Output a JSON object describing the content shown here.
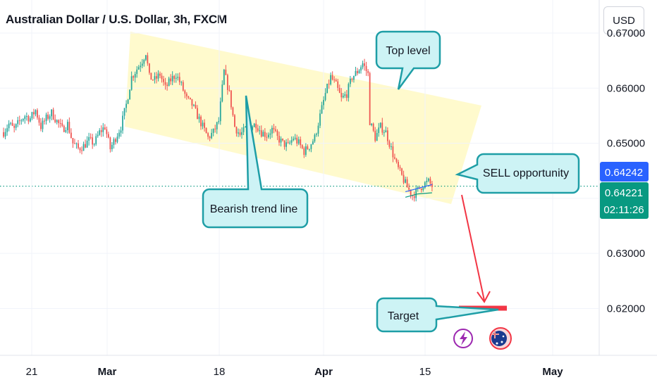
{
  "header": {
    "title": "Australian Dollar / U.S. Dollar, 3h, FXCM",
    "currency": "USD"
  },
  "colors": {
    "up": "#26a69a",
    "down": "#ef5350",
    "channel": "#fff9c4",
    "callout_fill": "#cdf3f5",
    "callout_stroke": "#1e9ea6",
    "arrow": "#f23645",
    "blue_tag": "#2962ff",
    "green_tag": "#089981"
  },
  "annotations": {
    "top_level": "Top level",
    "bearish_trend_line": "Bearish trend line",
    "sell_opportunity": "SELL opportunity",
    "target": "Target"
  },
  "price_tags": {
    "blue_price": "0.64242",
    "green_price": "0.64221",
    "countdown": "02:11:26"
  },
  "chart_data": {
    "type": "candlestick",
    "title": "Australian Dollar / U.S. Dollar, 3h, FXCM",
    "ylim": [
      0.6115,
      0.676
    ],
    "y_ticks": [
      "0.67000",
      "0.66000",
      "0.65000",
      "0.64000",
      "0.63000",
      "0.62000"
    ],
    "x_ticks": [
      {
        "label": "21",
        "bold": false
      },
      {
        "label": "Mar",
        "bold": true
      },
      {
        "label": "18",
        "bold": false
      },
      {
        "label": "Apr",
        "bold": true
      },
      {
        "label": "15",
        "bold": false
      },
      {
        "label": "May",
        "bold": true
      }
    ],
    "series": [
      {
        "close_path": [
          [
            0,
            0.652
          ],
          [
            3,
            0.6535
          ],
          [
            6,
            0.6525
          ],
          [
            9,
            0.654
          ],
          [
            12,
            0.655
          ],
          [
            15,
            0.6545
          ],
          [
            18,
            0.656
          ],
          [
            21,
            0.653
          ],
          [
            24,
            0.6545
          ],
          [
            27,
            0.6555
          ],
          [
            30,
            0.654
          ],
          [
            33,
            0.6525
          ],
          [
            36,
            0.6535
          ],
          [
            39,
            0.65
          ],
          [
            42,
            0.649
          ],
          [
            45,
            0.6495
          ],
          [
            48,
            0.6505
          ],
          [
            51,
            0.65
          ],
          [
            54,
            0.652
          ],
          [
            57,
            0.653
          ],
          [
            60,
            0.649
          ],
          [
            63,
            0.651
          ],
          [
            66,
            0.653
          ],
          [
            69,
            0.657
          ],
          [
            72,
            0.662
          ],
          [
            75,
            0.6635
          ],
          [
            78,
            0.665
          ],
          [
            80,
            0.6665
          ],
          [
            82,
            0.662
          ],
          [
            85,
            0.6615
          ],
          [
            88,
            0.6625
          ],
          [
            91,
            0.66
          ],
          [
            94,
            0.6615
          ],
          [
            97,
            0.6625
          ],
          [
            100,
            0.6605
          ],
          [
            103,
            0.658
          ],
          [
            106,
            0.657
          ],
          [
            109,
            0.655
          ],
          [
            112,
            0.653
          ],
          [
            115,
            0.651
          ],
          [
            118,
            0.652
          ],
          [
            121,
            0.654
          ],
          [
            124,
            0.663
          ],
          [
            127,
            0.659
          ],
          [
            130,
            0.653
          ],
          [
            133,
            0.6515
          ],
          [
            136,
            0.6525
          ],
          [
            139,
            0.653
          ],
          [
            142,
            0.6535
          ],
          [
            145,
            0.652
          ],
          [
            148,
            0.6515
          ],
          [
            151,
            0.6525
          ],
          [
            154,
            0.651
          ],
          [
            157,
            0.65
          ],
          [
            160,
            0.6495
          ],
          [
            163,
            0.651
          ],
          [
            166,
            0.65
          ],
          [
            169,
            0.6485
          ],
          [
            172,
            0.6495
          ],
          [
            175,
            0.651
          ],
          [
            178,
            0.655
          ],
          [
            181,
            0.659
          ],
          [
            184,
            0.662
          ],
          [
            187,
            0.6605
          ],
          [
            190,
            0.658
          ],
          [
            193,
            0.659
          ],
          [
            196,
            0.662
          ],
          [
            199,
            0.663
          ],
          [
            202,
            0.6645
          ],
          [
            205,
            0.6625
          ],
          [
            206,
            0.654
          ],
          [
            209,
            0.651
          ],
          [
            212,
            0.653
          ],
          [
            215,
            0.652
          ],
          [
            218,
            0.649
          ],
          [
            221,
            0.646
          ],
          [
            224,
            0.644
          ],
          [
            227,
            0.642
          ],
          [
            230,
            0.6405
          ],
          [
            233,
            0.6415
          ],
          [
            236,
            0.6425
          ],
          [
            239,
            0.643
          ],
          [
            241,
            0.6422
          ]
        ]
      }
    ],
    "x_index_range": [
      -2,
      335
    ]
  }
}
